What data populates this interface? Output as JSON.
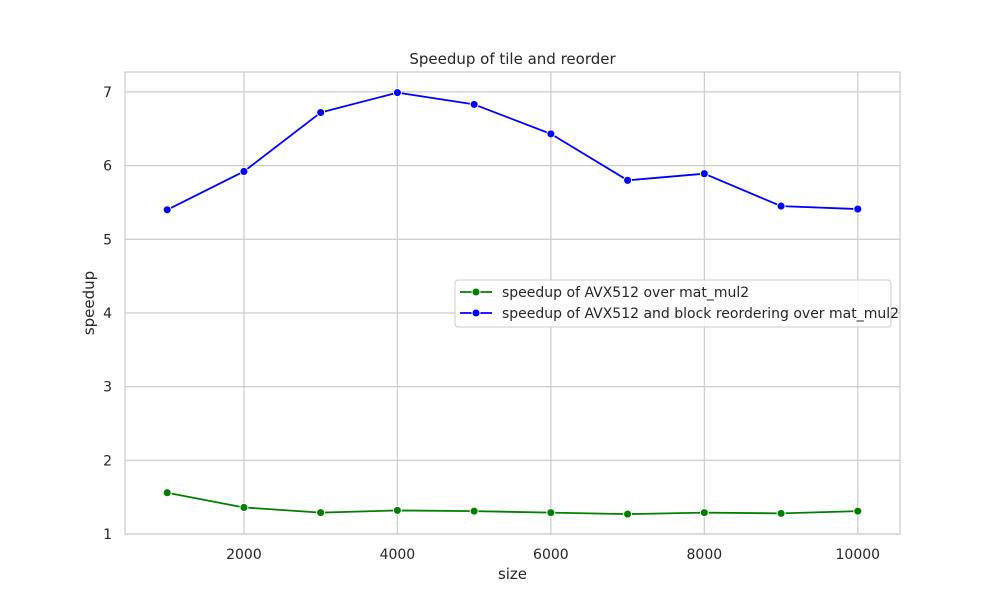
{
  "chart_data": {
    "type": "line",
    "title": "Speedup of tile and reorder",
    "xlabel": "size",
    "ylabel": "speedup",
    "xlim": [
      450,
      10550
    ],
    "ylim": [
      1,
      7.27
    ],
    "x_ticks": [
      2000,
      4000,
      6000,
      8000,
      10000
    ],
    "x_tick_labels": [
      "2000",
      "4000",
      "6000",
      "8000",
      "10000"
    ],
    "y_ticks": [
      1,
      2,
      3,
      4,
      5,
      6,
      7
    ],
    "y_tick_labels": [
      "1",
      "2",
      "3",
      "4",
      "5",
      "6",
      "7"
    ],
    "grid": true,
    "legend_position": "center-right",
    "x": [
      1000,
      2000,
      3000,
      4000,
      5000,
      6000,
      7000,
      8000,
      9000,
      10000
    ],
    "series": [
      {
        "name": "speedup of AVX512 over mat_mul2",
        "color": "#008000",
        "marker": "circle",
        "values": [
          1.56,
          1.36,
          1.29,
          1.32,
          1.31,
          1.29,
          1.27,
          1.29,
          1.28,
          1.31
        ]
      },
      {
        "name": "speedup of AVX512 and block reordering over mat_mul2",
        "color": "#0000ff",
        "marker": "circle",
        "values": [
          5.4,
          5.92,
          6.72,
          6.99,
          6.83,
          6.43,
          5.8,
          5.89,
          5.45,
          5.41
        ]
      }
    ]
  }
}
